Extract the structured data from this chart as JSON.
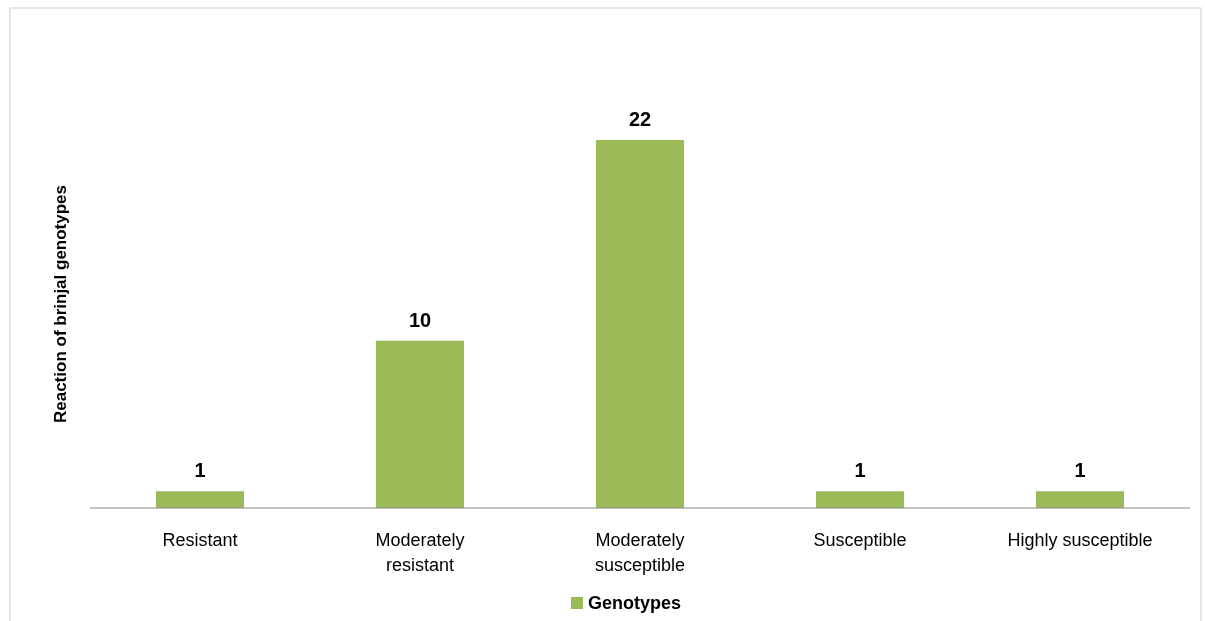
{
  "chart_data": {
    "type": "bar",
    "ylabel": "Reaction of brinjal genotypes",
    "categories": [
      "Resistant",
      "Moderately resistant",
      "Moderately susceptible",
      "Susceptible",
      "Highly susceptible"
    ],
    "series": [
      {
        "name": "Genotypes",
        "color": "#9bbb59",
        "values": [
          1,
          10,
          22,
          1,
          1
        ]
      }
    ],
    "data_labels": true,
    "legend": "bottom"
  }
}
